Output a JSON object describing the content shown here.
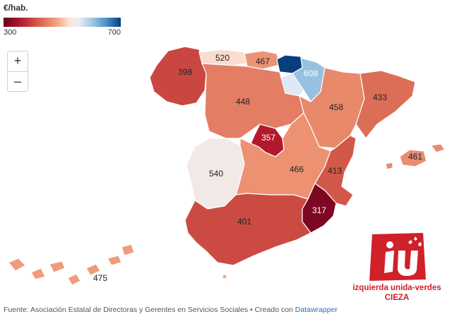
{
  "legend": {
    "title": "€/hab.",
    "min": "300",
    "max": "700"
  },
  "zoom": {
    "in": "+",
    "out": "–"
  },
  "map_data": {
    "type": "choropleth",
    "unit": "€/hab.",
    "scale": {
      "min": 300,
      "max": 700
    },
    "regions": [
      {
        "value": 398
      },
      {
        "value": 520
      },
      {
        "value": 467
      },
      {
        "value": 608
      },
      {
        "value": 448
      },
      {
        "value": 458
      },
      {
        "value": 433
      },
      {
        "value": 357
      },
      {
        "value": 540
      },
      {
        "value": 466
      },
      {
        "value": 413
      },
      {
        "value": 461
      },
      {
        "value": 317
      },
      {
        "value": 401
      },
      {
        "value": 475
      },
      {
        "value": 700
      }
    ]
  },
  "footer": {
    "source": "Fuente: Asociación Estatal de Directoras y Gerentes en Servicios Sociales • Creado con ",
    "link": "Datawrapper"
  },
  "logo": {
    "mark": "iu",
    "line1": "izquierda unida-verdes",
    "line2": "CIEZA"
  }
}
